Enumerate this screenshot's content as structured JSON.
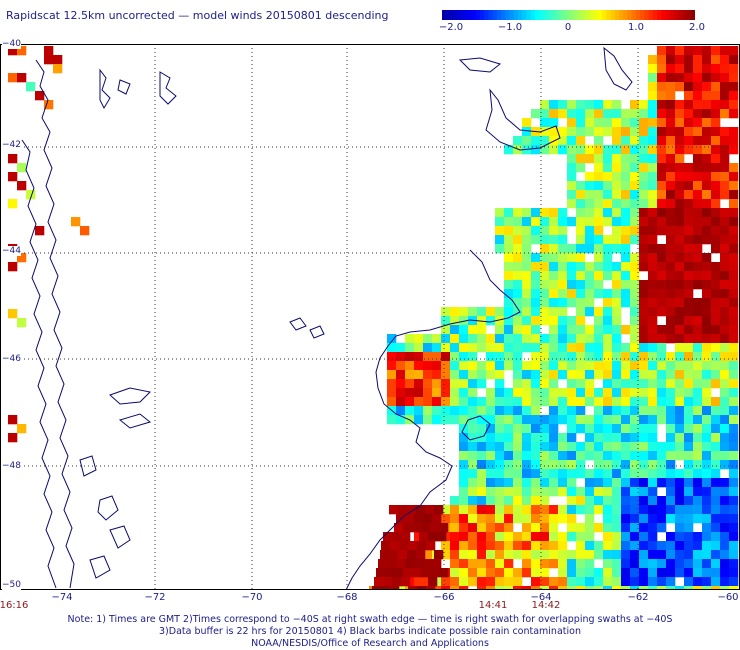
{
  "title": "Rapidscat 12.5km uncorrected — model winds 20150801 descending",
  "colorbar": {
    "ticks": [
      "−2.0",
      "−1.0",
      "0",
      "1.0",
      "2.0"
    ],
    "stops": [
      "#0000aa",
      "#0000ff",
      "#0080ff",
      "#00ffff",
      "#80ff80",
      "#ffff00",
      "#ff8000",
      "#ff0000",
      "#900000"
    ]
  },
  "map": {
    "lon_labels": [
      "−74",
      "−72",
      "−70",
      "−68",
      "−66",
      "−64",
      "−62",
      "−60"
    ],
    "lat_labels": [
      "−40",
      "−42",
      "−44",
      "−46",
      "−48",
      "−50"
    ],
    "time_labels": [
      "16:16",
      "14:41",
      "14:42"
    ]
  },
  "notes": [
    "Note: 1) Times are GMT 2)Times correspond to −40S at right swath edge — time is right swath for overlapping swaths at −40S",
    "3)Data buffer is 22 hrs for 20150801 4) Black barbs indicate possible rain contamination",
    "NOAA/NESDIS/Office of Research and Applications"
  ]
}
